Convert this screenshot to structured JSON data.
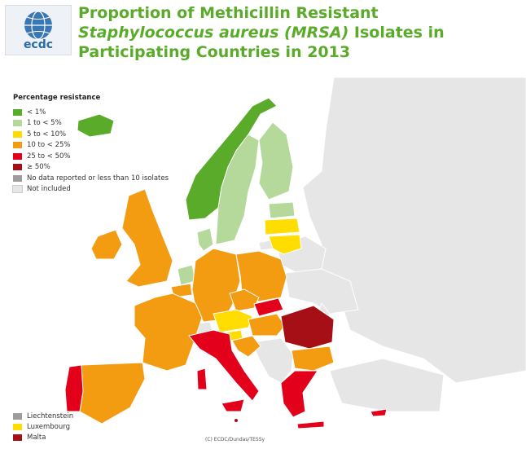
{
  "header": {
    "title_part1": "Proportion of Methicillin Resistant ",
    "title_italic1": "Staphylococcus aureus (MRSA)",
    "title_part2": " Isolates in Participating Countries in 2013",
    "logo_text": "ecdc"
  },
  "legend": {
    "title": "Percentage resistance",
    "items": [
      {
        "label": "< 1%",
        "color": "#5aab2a"
      },
      {
        "label": "1 to < 5%",
        "color": "#b5d99a"
      },
      {
        "label": "5 to < 10%",
        "color": "#ffdd00"
      },
      {
        "label": "10 to < 25%",
        "color": "#f39c12"
      },
      {
        "label": "25 to < 50%",
        "color": "#e3001b"
      },
      {
        "label": "≥ 50%",
        "color": "#a50f15"
      },
      {
        "label": "No data reported or less than 10 isolates",
        "color": "#9d9d9d"
      },
      {
        "label": "Not included",
        "color": "#e6e6e6"
      }
    ]
  },
  "small_states": [
    {
      "label": "Liechtenstein",
      "color": "#9d9d9d"
    },
    {
      "label": "Luxembourg",
      "color": "#ffdd00"
    },
    {
      "label": "Malta",
      "color": "#a50f15"
    }
  ],
  "credit": "(C) ECDC/Dundas/TESSy",
  "map_colors": {
    "ocean": "#ffffff",
    "border": "#ffffff",
    "not_included": "#e6e6e6",
    "no_data": "#9d9d9d"
  }
}
